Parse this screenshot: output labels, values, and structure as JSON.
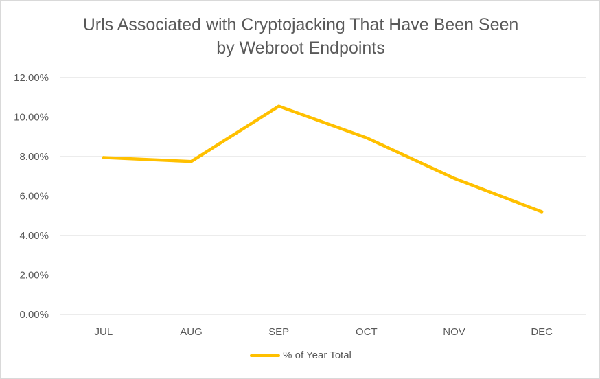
{
  "chart_data": {
    "type": "line",
    "title_line1": "Urls Associated with Cryptojacking That Have Been Seen",
    "title_line2": "by Webroot Endpoints",
    "xlabel": "",
    "ylabel": "",
    "categories": [
      "JUL",
      "AUG",
      "SEP",
      "OCT",
      "NOV",
      "DEC"
    ],
    "y_ticks": [
      "0.00%",
      "2.00%",
      "4.00%",
      "6.00%",
      "8.00%",
      "10.00%",
      "12.00%"
    ],
    "ylim": [
      0,
      12
    ],
    "grid": true,
    "legend_position": "bottom",
    "series": [
      {
        "name": "% of Year Total",
        "color": "#FFC000",
        "values": [
          7.95,
          7.75,
          10.55,
          8.95,
          6.9,
          5.2
        ]
      }
    ]
  }
}
